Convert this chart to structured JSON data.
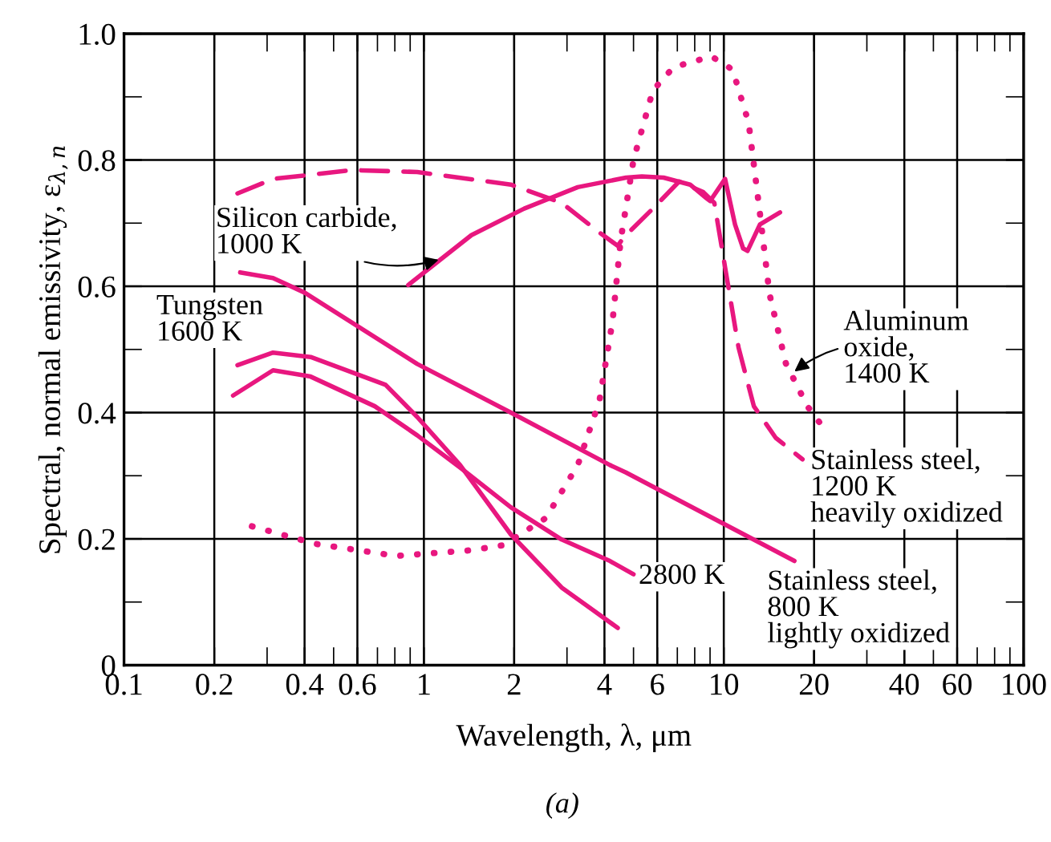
{
  "chart_data": {
    "type": "line",
    "xlabel": "Wavelength, λ, μm",
    "ylabel": "Spectral, normal emissivity, ε$_{λ,n}$",
    "log": "x",
    "xlim": [
      0.1,
      100
    ],
    "ylim": [
      0,
      1
    ],
    "xticks": [
      0.1,
      0.2,
      0.4,
      0.6,
      1,
      2,
      4,
      6,
      10,
      20,
      40,
      60,
      100
    ],
    "yticks": [
      0,
      0.2,
      0.4,
      0.6,
      0.8,
      {
        "value": 1,
        "label": "1.0"
      }
    ],
    "grid": true,
    "marker": "none",
    "series": [
      {
        "color": "#e8177f",
        "line_style": "solid",
        "x": [
          0.244,
          0.314,
          0.4,
          0.95,
          1.95,
          4.17,
          4.72,
          17.2
        ],
        "values": [
          0.622,
          0.613,
          0.59,
          0.477,
          0.4,
          0.317,
          0.305,
          0.165
        ]
      },
      {
        "color": "#e8177f",
        "line_style": "solid",
        "x": [
          0.239,
          0.314,
          0.419,
          0.745,
          0.95,
          1.32,
          1.95,
          2.88,
          4.43
        ],
        "values": [
          0.475,
          0.495,
          0.488,
          0.444,
          0.393,
          0.317,
          0.207,
          0.123,
          0.059
        ]
      },
      {
        "color": "#e8177f",
        "line_style": "solid",
        "x": [
          0.231,
          0.314,
          0.419,
          0.686,
          0.95,
          1.32,
          1.95,
          2.88,
          4.17,
          5.0
        ],
        "values": [
          0.427,
          0.467,
          0.457,
          0.41,
          0.364,
          0.313,
          0.25,
          0.199,
          0.165,
          0.144
        ]
      },
      {
        "color": "#e8177f",
        "line_style": "solid",
        "x": [
          0.887,
          1.44,
          2.16,
          3.26,
          4.72,
          5.33,
          6.3,
          7.72,
          8.73,
          9.0,
          10.1,
          10.9,
          11.6,
          12.0,
          13.2,
          15.4
        ],
        "values": [
          0.602,
          0.681,
          0.723,
          0.757,
          0.772,
          0.774,
          0.772,
          0.761,
          0.74,
          0.735,
          0.77,
          0.698,
          0.66,
          0.656,
          0.698,
          0.717
        ]
      },
      {
        "color": "#e8177f",
        "line_style": "dashed",
        "x": [
          0.239,
          0.314,
          0.58,
          0.95,
          1.95,
          2.88,
          3.85,
          4.43,
          4.63,
          5.8,
          7.1,
          8.55,
          9.3,
          10.1,
          11.2,
          12.6,
          14.9,
          18.3
        ],
        "values": [
          0.747,
          0.77,
          0.784,
          0.781,
          0.761,
          0.732,
          0.685,
          0.664,
          0.677,
          0.723,
          0.766,
          0.749,
          0.732,
          0.63,
          0.503,
          0.41,
          0.36,
          0.326
        ]
      },
      {
        "color": "#e8177f",
        "line_style": "dotted",
        "x": [
          0.267,
          0.436,
          0.81,
          1.44,
          1.84,
          2.55,
          3.26,
          3.85,
          4.26,
          4.53,
          5.0,
          5.8,
          6.8,
          9.1,
          10.7,
          12.1,
          13.2,
          14.2,
          16.1,
          19.0,
          21.5
        ],
        "values": [
          0.22,
          0.192,
          0.173,
          0.182,
          0.19,
          0.233,
          0.317,
          0.419,
          0.546,
          0.673,
          0.8,
          0.91,
          0.947,
          0.964,
          0.943,
          0.859,
          0.715,
          0.588,
          0.478,
          0.41,
          0.376
        ]
      }
    ],
    "annotations": [
      {
        "text": "Silicon carbide,\n1000 K",
        "x": 1.12,
        "y": 0.642
      },
      "Tungsten\n1600 K",
      {
        "text": "2800 K",
        "x": 5.2,
        "y": 0.14
      },
      {
        "text": "Aluminum\noxide,\n1400 K",
        "x": 17.2,
        "y": 0.465
      },
      "Stainless steel,\n1200 K\nheavily oxidized",
      "Stainless steel,\n800 K\nlightly oxidized",
      "(a)"
    ]
  }
}
